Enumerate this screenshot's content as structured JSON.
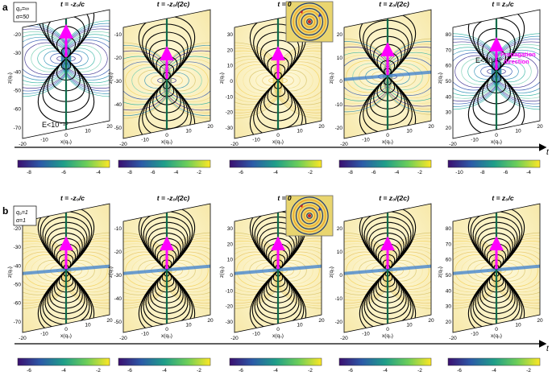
{
  "figure": {
    "rows": [
      {
        "label": "a",
        "params": [
          "q₀=∞",
          "α=50"
        ],
        "panel_titles": [
          "t = -z₀/c",
          "t = -z₀/(2c)",
          "t = 0",
          "t = z₀/(2c)",
          "t = z₀/c"
        ],
        "annotations": [
          "E<10⁻¹⁰",
          "E<10⁻¹⁰"
        ],
        "propagation_label": [
          "Propagation",
          "direction"
        ],
        "colorbars": [
          [
            "-8",
            "-6",
            "-4"
          ],
          [
            "-8",
            "-6",
            "-4",
            "-2"
          ],
          [
            "-6",
            "-4",
            "-2"
          ],
          [
            "-8",
            "-6",
            "-4",
            "-2"
          ],
          [
            "-10",
            "-8",
            "-6",
            "-4"
          ]
        ]
      },
      {
        "label": "b",
        "params": [
          "q₀=1",
          "α=1"
        ],
        "panel_titles": [
          "t = -z₀/c",
          "t = -z₀/(2c)",
          "t = 0",
          "t = z₀/(2c)",
          "t = z₀/c"
        ],
        "colorbars": [
          [
            "-6",
            "-4",
            "-2"
          ],
          [
            "-6",
            "-4",
            "-2"
          ],
          [
            "-6",
            "-4",
            "-2"
          ],
          [
            "-6",
            "-4",
            "-2"
          ],
          [
            "-6",
            "-4",
            "-2"
          ]
        ]
      }
    ],
    "xlabel": "x(q₀)",
    "ylabel": "z(q₀)",
    "time_axis_label": "t",
    "x_ticks": [
      "-20",
      "-10",
      "0",
      "10",
      "20"
    ],
    "z_ticks": {
      "a": [
        [
          "-20",
          "-30",
          "-40",
          "-50",
          "-60",
          "-70"
        ],
        [
          "-10",
          "-20",
          "-30",
          "-40",
          "-50"
        ],
        [
          "30",
          "20",
          "10",
          "0",
          "-10",
          "-20",
          "-30"
        ],
        [
          "20",
          "10",
          "0",
          "-10",
          "-20"
        ],
        [
          "80",
          "70",
          "60",
          "50",
          "40",
          "30",
          "20"
        ]
      ],
      "b": [
        [
          "-20",
          "-30",
          "-40",
          "-50",
          "-60",
          "-70"
        ],
        [
          "-10",
          "-20",
          "-30",
          "-40",
          "-50"
        ],
        [
          "30",
          "20",
          "10",
          "0",
          "-10",
          "-20",
          "-30"
        ],
        [
          "20",
          "10",
          "0",
          "-10",
          "-20"
        ],
        [
          "80",
          "70",
          "60",
          "50",
          "40",
          "30",
          "20"
        ]
      ]
    },
    "colors": {
      "dark_field": "#000000",
      "axis_line": "#0e6b4a",
      "arrow": "#ff00ff",
      "cmap": [
        "#3b0f70",
        "#2c5ba8",
        "#1f9e89",
        "#6cce59",
        "#fde725"
      ]
    }
  }
}
